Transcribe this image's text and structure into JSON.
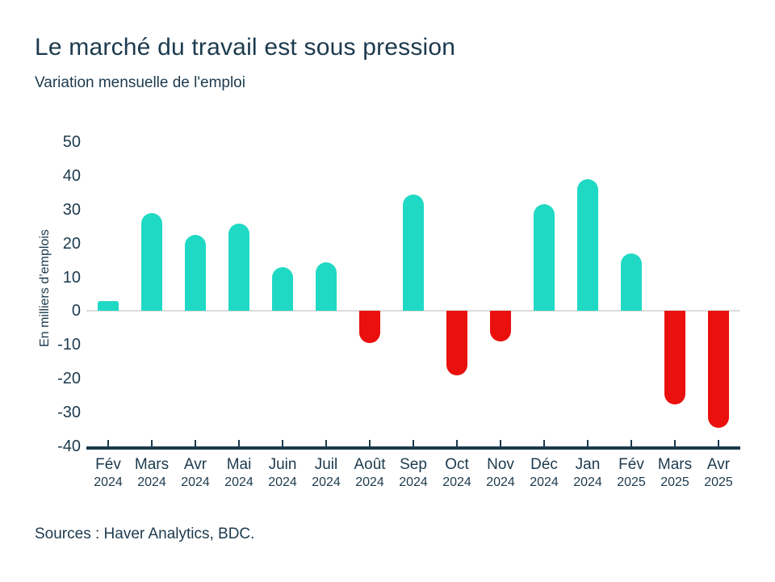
{
  "page": {
    "title": "Le marché du travail est sous pression",
    "subtitle": "Variation mensuelle de l'emploi",
    "source": "Sources : Haver Analytics, BDC."
  },
  "colors": {
    "navy_text": "#1C3A4E",
    "positive_teal": "#20D9C4",
    "negative_red": "#E9100E",
    "zero_line_gray": "#DCDCDC"
  },
  "chart_data": {
    "type": "bar",
    "title": "Le marché du travail est sous pression",
    "subtitle": "Variation mensuelle de l'emploi",
    "xlabel": "",
    "ylabel": "En milliers d’emplois",
    "ylim": [
      -40,
      50
    ],
    "yticks": [
      50,
      40,
      30,
      20,
      10,
      0,
      -10,
      -20,
      -30,
      -40
    ],
    "grid": "zero-line-only",
    "legend": "none",
    "categories": [
      {
        "month": "Fév",
        "year": "2024"
      },
      {
        "month": "Mars",
        "year": "2024"
      },
      {
        "month": "Avr",
        "year": "2024"
      },
      {
        "month": "Mai",
        "year": "2024"
      },
      {
        "month": "Juin",
        "year": "2024"
      },
      {
        "month": "Juil",
        "year": "2024"
      },
      {
        "month": "Août",
        "year": "2024"
      },
      {
        "month": "Sep",
        "year": "2024"
      },
      {
        "month": "Oct",
        "year": "2024"
      },
      {
        "month": "Nov",
        "year": "2024"
      },
      {
        "month": "Déc",
        "year": "2024"
      },
      {
        "month": "Jan",
        "year": "2024"
      },
      {
        "month": "Fév",
        "year": "2025"
      },
      {
        "month": "Mars",
        "year": "2025"
      },
      {
        "month": "Avr",
        "year": "2025"
      }
    ],
    "values": [
      3,
      29,
      22.5,
      26,
      13,
      14.5,
      -9.5,
      34.5,
      -19,
      -9,
      31.5,
      39,
      17,
      -27.5,
      -34.5
    ],
    "positive_color": "#20D9C4",
    "negative_color": "#E9100E"
  }
}
